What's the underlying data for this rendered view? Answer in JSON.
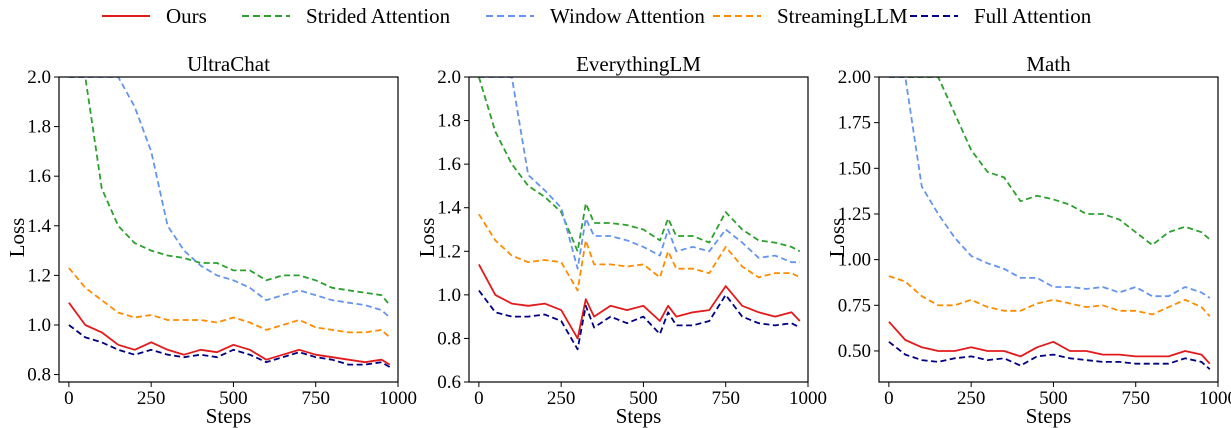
{
  "legend": [
    {
      "name": "Ours",
      "color": "#e31a1c",
      "dash": "solid"
    },
    {
      "name": "Strided Attention",
      "color": "#2ca02c",
      "dash": "dashed"
    },
    {
      "name": "Window Attention",
      "color": "#6495ed",
      "dash": "dashed"
    },
    {
      "name": "StreamingLLM",
      "color": "#ff8c00",
      "dash": "dashed"
    },
    {
      "name": "Full Attention",
      "color": "#000080",
      "dash": "dashed"
    }
  ],
  "chart_data": [
    {
      "type": "line",
      "title": "UltraChat",
      "xlabel": "Steps",
      "ylabel": "Loss",
      "xlim": [
        -30,
        1000
      ],
      "ylim": [
        0.77,
        2.0
      ],
      "xticks": [
        0,
        250,
        500,
        750,
        1000
      ],
      "yticks": [
        0.8,
        1.0,
        1.2,
        1.4,
        1.6,
        1.8,
        2.0
      ],
      "ytick_labels": [
        "0.8",
        "1.0",
        "1.2",
        "1.4",
        "1.6",
        "1.8",
        "2.0"
      ],
      "x": [
        0,
        50,
        100,
        150,
        200,
        250,
        300,
        350,
        400,
        450,
        500,
        550,
        600,
        650,
        700,
        750,
        800,
        850,
        900,
        950,
        975
      ],
      "series": [
        {
          "name": "Ours",
          "color": "#e31a1c",
          "values": [
            1.09,
            1.0,
            0.97,
            0.92,
            0.9,
            0.93,
            0.9,
            0.88,
            0.9,
            0.89,
            0.92,
            0.9,
            0.86,
            0.88,
            0.9,
            0.88,
            0.87,
            0.86,
            0.85,
            0.86,
            0.84
          ]
        },
        {
          "name": "Strided Attention",
          "color": "#2ca02c",
          "values": [
            2.0,
            2.0,
            1.55,
            1.4,
            1.33,
            1.3,
            1.28,
            1.27,
            1.25,
            1.25,
            1.22,
            1.22,
            1.18,
            1.2,
            1.2,
            1.18,
            1.15,
            1.14,
            1.13,
            1.12,
            1.08
          ]
        },
        {
          "name": "Window Attention",
          "color": "#6495ed",
          "values": [
            2.0,
            2.0,
            2.0,
            2.0,
            1.88,
            1.7,
            1.4,
            1.3,
            1.24,
            1.2,
            1.18,
            1.15,
            1.1,
            1.12,
            1.14,
            1.12,
            1.1,
            1.09,
            1.08,
            1.06,
            1.03
          ]
        },
        {
          "name": "StreamingLLM",
          "color": "#ff8c00",
          "values": [
            1.23,
            1.15,
            1.1,
            1.05,
            1.03,
            1.04,
            1.02,
            1.02,
            1.02,
            1.01,
            1.03,
            1.01,
            0.98,
            1.0,
            1.02,
            0.99,
            0.98,
            0.97,
            0.97,
            0.98,
            0.95
          ]
        },
        {
          "name": "Full Attention",
          "color": "#000080",
          "values": [
            1.0,
            0.95,
            0.93,
            0.9,
            0.88,
            0.9,
            0.88,
            0.87,
            0.88,
            0.87,
            0.9,
            0.88,
            0.85,
            0.87,
            0.89,
            0.87,
            0.86,
            0.84,
            0.84,
            0.85,
            0.83
          ]
        }
      ]
    },
    {
      "type": "line",
      "title": "EverythingLM",
      "xlabel": "Steps",
      "ylabel": "Loss",
      "xlim": [
        -30,
        1000
      ],
      "ylim": [
        0.6,
        2.0
      ],
      "xticks": [
        0,
        250,
        500,
        750,
        1000
      ],
      "yticks": [
        0.6,
        0.8,
        1.0,
        1.2,
        1.4,
        1.6,
        1.8,
        2.0
      ],
      "ytick_labels": [
        "0.6",
        "0.8",
        "1.0",
        "1.2",
        "1.4",
        "1.6",
        "1.8",
        "2.0"
      ],
      "x": [
        0,
        50,
        100,
        150,
        200,
        250,
        300,
        325,
        350,
        400,
        450,
        500,
        550,
        575,
        600,
        650,
        700,
        750,
        800,
        850,
        900,
        950,
        975
      ],
      "series": [
        {
          "name": "Ours",
          "color": "#e31a1c",
          "values": [
            1.14,
            1.0,
            0.96,
            0.95,
            0.96,
            0.93,
            0.8,
            0.98,
            0.9,
            0.95,
            0.93,
            0.95,
            0.88,
            0.95,
            0.9,
            0.92,
            0.93,
            1.04,
            0.95,
            0.92,
            0.9,
            0.92,
            0.88
          ]
        },
        {
          "name": "Strided Attention",
          "color": "#2ca02c",
          "values": [
            2.0,
            1.75,
            1.6,
            1.5,
            1.45,
            1.38,
            1.2,
            1.42,
            1.33,
            1.33,
            1.32,
            1.3,
            1.25,
            1.35,
            1.27,
            1.27,
            1.24,
            1.38,
            1.3,
            1.25,
            1.24,
            1.22,
            1.2
          ]
        },
        {
          "name": "Window Attention",
          "color": "#6495ed",
          "values": [
            2.0,
            2.0,
            2.0,
            1.55,
            1.48,
            1.4,
            1.12,
            1.35,
            1.27,
            1.27,
            1.25,
            1.22,
            1.18,
            1.3,
            1.2,
            1.22,
            1.2,
            1.3,
            1.24,
            1.17,
            1.18,
            1.15,
            1.15
          ]
        },
        {
          "name": "StreamingLLM",
          "color": "#ff8c00",
          "values": [
            1.37,
            1.25,
            1.18,
            1.15,
            1.16,
            1.15,
            1.02,
            1.25,
            1.14,
            1.14,
            1.13,
            1.14,
            1.08,
            1.2,
            1.12,
            1.12,
            1.1,
            1.22,
            1.13,
            1.08,
            1.1,
            1.1,
            1.08
          ]
        },
        {
          "name": "Full Attention",
          "color": "#000080",
          "values": [
            1.02,
            0.92,
            0.9,
            0.9,
            0.91,
            0.88,
            0.75,
            0.95,
            0.85,
            0.9,
            0.87,
            0.9,
            0.82,
            0.92,
            0.86,
            0.86,
            0.88,
            1.0,
            0.9,
            0.87,
            0.86,
            0.87,
            0.85
          ]
        }
      ]
    },
    {
      "type": "line",
      "title": "Math",
      "xlabel": "Steps",
      "ylabel": "Loss",
      "xlim": [
        -30,
        1000
      ],
      "ylim": [
        0.33,
        2.0
      ],
      "xticks": [
        0,
        250,
        500,
        750,
        1000
      ],
      "yticks": [
        0.5,
        0.75,
        1.0,
        1.25,
        1.5,
        1.75,
        2.0
      ],
      "ytick_labels": [
        "0.50",
        "0.75",
        "1.00",
        "1.25",
        "1.50",
        "1.75",
        "2.00"
      ],
      "x": [
        0,
        50,
        100,
        150,
        200,
        250,
        300,
        350,
        400,
        450,
        500,
        550,
        600,
        650,
        700,
        750,
        800,
        850,
        900,
        950,
        975
      ],
      "series": [
        {
          "name": "Ours",
          "color": "#e31a1c",
          "values": [
            0.66,
            0.56,
            0.52,
            0.5,
            0.5,
            0.52,
            0.5,
            0.5,
            0.47,
            0.52,
            0.55,
            0.5,
            0.5,
            0.48,
            0.48,
            0.47,
            0.47,
            0.47,
            0.5,
            0.48,
            0.43
          ]
        },
        {
          "name": "Strided Attention",
          "color": "#2ca02c",
          "values": [
            2.0,
            2.0,
            2.0,
            2.0,
            1.8,
            1.6,
            1.48,
            1.45,
            1.32,
            1.35,
            1.33,
            1.3,
            1.25,
            1.25,
            1.22,
            1.15,
            1.08,
            1.15,
            1.18,
            1.15,
            1.11
          ]
        },
        {
          "name": "Window Attention",
          "color": "#6495ed",
          "values": [
            2.0,
            2.0,
            1.4,
            1.25,
            1.12,
            1.02,
            0.98,
            0.95,
            0.9,
            0.9,
            0.85,
            0.85,
            0.84,
            0.85,
            0.82,
            0.85,
            0.8,
            0.8,
            0.85,
            0.82,
            0.79
          ]
        },
        {
          "name": "StreamingLLM",
          "color": "#ff8c00",
          "values": [
            0.91,
            0.88,
            0.8,
            0.75,
            0.75,
            0.78,
            0.74,
            0.72,
            0.72,
            0.76,
            0.78,
            0.76,
            0.74,
            0.75,
            0.72,
            0.72,
            0.7,
            0.74,
            0.78,
            0.74,
            0.69
          ]
        },
        {
          "name": "Full Attention",
          "color": "#000080",
          "values": [
            0.55,
            0.48,
            0.45,
            0.44,
            0.46,
            0.47,
            0.45,
            0.46,
            0.42,
            0.47,
            0.48,
            0.46,
            0.45,
            0.44,
            0.44,
            0.43,
            0.43,
            0.43,
            0.46,
            0.44,
            0.4
          ]
        }
      ]
    }
  ]
}
